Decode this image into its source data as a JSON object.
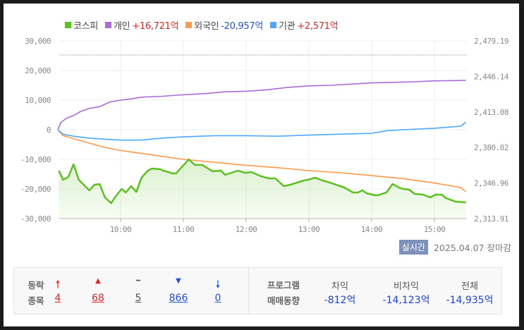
{
  "legend": {
    "kospi": {
      "label": "코스피",
      "color": "#5cc11f"
    },
    "individual": {
      "label": "개인",
      "value": "+16,721억",
      "color": "#a86bd9"
    },
    "foreign": {
      "label": "외국인",
      "value": "-20,957억",
      "color": "#ff9a4a"
    },
    "institution": {
      "label": "기관",
      "value": "+2,571억",
      "color": "#4aa8ff"
    }
  },
  "status": {
    "badge": "실시간",
    "date": "2025.04.07",
    "state": "장마감"
  },
  "chart_data": {
    "type": "line",
    "x_ticks": [
      "10:00",
      "11:00",
      "12:00",
      "13:00",
      "14:00",
      "15:00"
    ],
    "x_range": [
      "09:00",
      "15:30"
    ],
    "y_left": {
      "ticks": [
        "30,000",
        "20,000",
        "10,000",
        "0",
        "-10,000",
        "-20,000",
        "-30,000"
      ],
      "range": [
        -30000,
        30000
      ],
      "unit": "억"
    },
    "y_right": {
      "ticks": [
        "2,479.19",
        "2,446.14",
        "2,413.08",
        "2,380.02",
        "2,346.96",
        "2,313.91"
      ],
      "range": [
        2313.91,
        2479.19
      ]
    },
    "reference_line": {
      "axis": "right",
      "value": 2466.07,
      "style": "dotted"
    },
    "grid": true,
    "legend_position": "top-left",
    "series": [
      {
        "name": "개인",
        "axis": "left",
        "color": "#a86bd9",
        "points": [
          [
            "09:00",
            0
          ],
          [
            "09:03",
            2500
          ],
          [
            "09:08",
            3800
          ],
          [
            "09:15",
            4800
          ],
          [
            "09:22",
            6200
          ],
          [
            "09:30",
            7200
          ],
          [
            "09:40",
            7800
          ],
          [
            "09:50",
            9400
          ],
          [
            "10:00",
            10000
          ],
          [
            "10:10",
            10400
          ],
          [
            "10:20",
            11000
          ],
          [
            "10:40",
            11300
          ],
          [
            "11:00",
            11800
          ],
          [
            "11:20",
            12200
          ],
          [
            "11:40",
            12800
          ],
          [
            "12:00",
            13000
          ],
          [
            "12:20",
            13500
          ],
          [
            "12:40",
            14300
          ],
          [
            "13:00",
            14800
          ],
          [
            "13:20",
            15000
          ],
          [
            "13:40",
            15400
          ],
          [
            "14:00",
            15800
          ],
          [
            "14:20",
            16000
          ],
          [
            "14:40",
            16200
          ],
          [
            "15:00",
            16500
          ],
          [
            "15:20",
            16600
          ],
          [
            "15:30",
            16721
          ]
        ]
      },
      {
        "name": "외국인",
        "axis": "left",
        "color": "#ff9a4a",
        "points": [
          [
            "09:00",
            0
          ],
          [
            "09:05",
            -2000
          ],
          [
            "09:15",
            -3000
          ],
          [
            "09:30",
            -4500
          ],
          [
            "09:45",
            -6000
          ],
          [
            "10:00",
            -7000
          ],
          [
            "10:20",
            -8000
          ],
          [
            "10:40",
            -9000
          ],
          [
            "11:00",
            -10000
          ],
          [
            "11:30",
            -11000
          ],
          [
            "12:00",
            -12000
          ],
          [
            "12:30",
            -12800
          ],
          [
            "13:00",
            -13800
          ],
          [
            "13:30",
            -14500
          ],
          [
            "14:00",
            -15500
          ],
          [
            "14:30",
            -16500
          ],
          [
            "15:00",
            -18000
          ],
          [
            "15:25",
            -19500
          ],
          [
            "15:30",
            -20957
          ]
        ]
      },
      {
        "name": "기관",
        "axis": "left",
        "color": "#4aa8ff",
        "points": [
          [
            "09:00",
            0
          ],
          [
            "09:05",
            -1500
          ],
          [
            "09:15",
            -2200
          ],
          [
            "09:30",
            -2800
          ],
          [
            "09:45",
            -3200
          ],
          [
            "10:00",
            -3500
          ],
          [
            "10:20",
            -3500
          ],
          [
            "10:35",
            -3000
          ],
          [
            "10:45",
            -2700
          ],
          [
            "11:00",
            -2400
          ],
          [
            "11:30",
            -2000
          ],
          [
            "12:00",
            -2000
          ],
          [
            "12:30",
            -2200
          ],
          [
            "13:00",
            -1800
          ],
          [
            "13:30",
            -1500
          ],
          [
            "14:00",
            -1200
          ],
          [
            "14:15",
            -300
          ],
          [
            "14:30",
            0
          ],
          [
            "15:00",
            500
          ],
          [
            "15:25",
            1200
          ],
          [
            "15:30",
            2571
          ]
        ]
      },
      {
        "name": "코스피",
        "axis": "right",
        "color": "#5cc11f",
        "points": [
          [
            "09:01",
            2358.5
          ],
          [
            "09:05",
            2350.0
          ],
          [
            "09:10",
            2352.6
          ],
          [
            "09:15",
            2364.4
          ],
          [
            "09:20",
            2350.0
          ],
          [
            "09:30",
            2340.2
          ],
          [
            "09:35",
            2345.4
          ],
          [
            "09:40",
            2346.0
          ],
          [
            "09:45",
            2333.6
          ],
          [
            "09:51",
            2328.3
          ],
          [
            "09:55",
            2334.2
          ],
          [
            "10:01",
            2341.5
          ],
          [
            "10:05",
            2338.2
          ],
          [
            "10:10",
            2344.1
          ],
          [
            "10:15",
            2338.8
          ],
          [
            "10:20",
            2352.0
          ],
          [
            "10:26",
            2358.5
          ],
          [
            "10:30",
            2360.5
          ],
          [
            "10:38",
            2359.8
          ],
          [
            "10:41",
            2358.5
          ],
          [
            "10:50",
            2355.9
          ],
          [
            "10:53",
            2355.9
          ],
          [
            "10:59",
            2362.5
          ],
          [
            "11:01",
            2364.4
          ],
          [
            "11:05",
            2369.0
          ],
          [
            "11:11",
            2363.8
          ],
          [
            "11:18",
            2363.8
          ],
          [
            "11:28",
            2357.9
          ],
          [
            "11:36",
            2358.5
          ],
          [
            "11:40",
            2354.6
          ],
          [
            "11:52",
            2358.5
          ],
          [
            "11:59",
            2356.5
          ],
          [
            "12:05",
            2357.2
          ],
          [
            "12:14",
            2353.3
          ],
          [
            "12:22",
            2351.3
          ],
          [
            "12:28",
            2351.3
          ],
          [
            "12:36",
            2344.1
          ],
          [
            "12:42",
            2345.4
          ],
          [
            "12:55",
            2349.3
          ],
          [
            "12:59",
            2350.0
          ],
          [
            "13:06",
            2352.0
          ],
          [
            "13:13",
            2349.3
          ],
          [
            "13:20",
            2347.4
          ],
          [
            "13:28",
            2344.7
          ],
          [
            "13:34",
            2342.8
          ],
          [
            "13:42",
            2338.2
          ],
          [
            "13:47",
            2338.2
          ],
          [
            "13:51",
            2340.2
          ],
          [
            "13:55",
            2337.5
          ],
          [
            "14:03",
            2335.6
          ],
          [
            "14:06",
            2335.6
          ],
          [
            "14:14",
            2338.2
          ],
          [
            "14:20",
            2346.1
          ],
          [
            "14:26",
            2342.8
          ],
          [
            "14:30",
            2341.5
          ],
          [
            "14:36",
            2340.8
          ],
          [
            "14:41",
            2336.9
          ],
          [
            "14:49",
            2336.2
          ],
          [
            "14:56",
            2333.6
          ],
          [
            "15:01",
            2336.2
          ],
          [
            "15:07",
            2336.2
          ],
          [
            "15:11",
            2332.9
          ],
          [
            "15:20",
            2329.7
          ],
          [
            "15:30",
            2329.0
          ]
        ]
      }
    ]
  },
  "advance_decline": {
    "label_top": "등락",
    "label_bottom": "종목",
    "items": [
      {
        "icon": "upper-limit-arrow-icon",
        "glyph": "🠕",
        "value": "4",
        "color": "#e32222"
      },
      {
        "icon": "rise-triangle-icon",
        "glyph": "▲",
        "value": "68",
        "color": "#e32222"
      },
      {
        "icon": "unchanged-dash-icon",
        "glyph": "━",
        "value": "5",
        "color": "#555555"
      },
      {
        "icon": "fall-triangle-icon",
        "glyph": "▼",
        "value": "866",
        "color": "#1f4fe0"
      },
      {
        "icon": "lower-limit-arrow-icon",
        "glyph": "🠗",
        "value": "0",
        "color": "#1f4fe0"
      }
    ]
  },
  "program": {
    "label_top": "프로그램",
    "label_bottom": "매매동향",
    "columns": [
      {
        "header": "차익",
        "value": "-812억"
      },
      {
        "header": "비차익",
        "value": "-14,123억"
      },
      {
        "header": "전체",
        "value": "-14,935억"
      }
    ]
  }
}
